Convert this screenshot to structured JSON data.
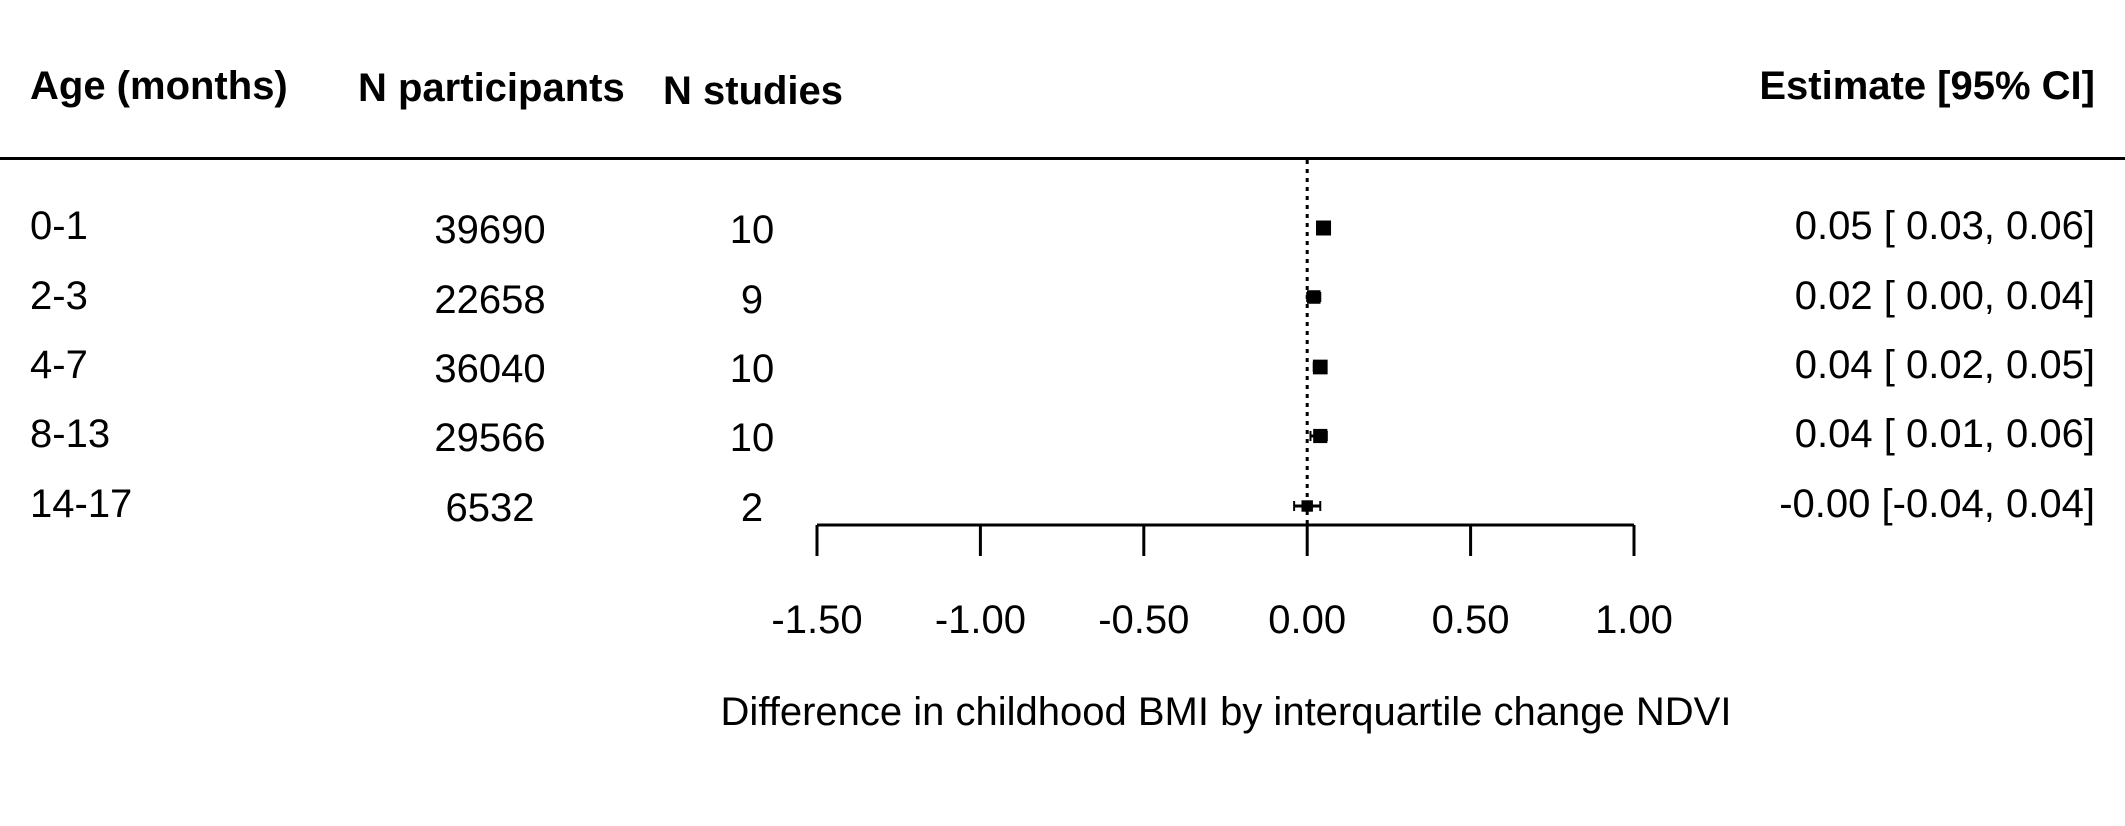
{
  "headers": {
    "age": "Age (months)",
    "participants": "N participants",
    "studies": "N studies",
    "estimate": "Estimate [95% CI]"
  },
  "rows": [
    {
      "age": "0-1",
      "participants": "39690",
      "studies": "10",
      "estimate": "0.05 [ 0.03, 0.06]"
    },
    {
      "age": "2-3",
      "participants": "22658",
      "studies": "9",
      "estimate": "0.02 [ 0.00, 0.04]"
    },
    {
      "age": "4-7",
      "participants": "36040",
      "studies": "10",
      "estimate": "0.04 [ 0.02, 0.05]"
    },
    {
      "age": "8-13",
      "participants": "29566",
      "studies": "10",
      "estimate": "0.04 [ 0.01, 0.06]"
    },
    {
      "age": "14-17",
      "participants": "6532",
      "studies": "2",
      "estimate": "-0.00 [-0.04, 0.04]"
    }
  ],
  "chart_data": {
    "type": "forest",
    "xlabel": "Difference in childhood BMI by interquartile change NDVI",
    "xlim": [
      -1.5,
      1.0
    ],
    "xticks": [
      -1.5,
      -1.0,
      -0.5,
      0.0,
      0.5,
      1.0
    ],
    "xtick_labels": [
      "-1.50",
      "-1.00",
      "-0.50",
      "0.00",
      "0.50",
      "1.00"
    ],
    "reference_line": 0.0,
    "categories": [
      "0-1",
      "2-3",
      "4-7",
      "8-13",
      "14-17"
    ],
    "estimates": [
      0.05,
      0.02,
      0.04,
      0.04,
      -0.0
    ],
    "ci_lower": [
      0.03,
      0.0,
      0.02,
      0.01,
      -0.04
    ],
    "ci_upper": [
      0.06,
      0.04,
      0.05,
      0.06,
      0.04
    ],
    "weights": [
      39690,
      22658,
      36040,
      29566,
      6532
    ]
  }
}
